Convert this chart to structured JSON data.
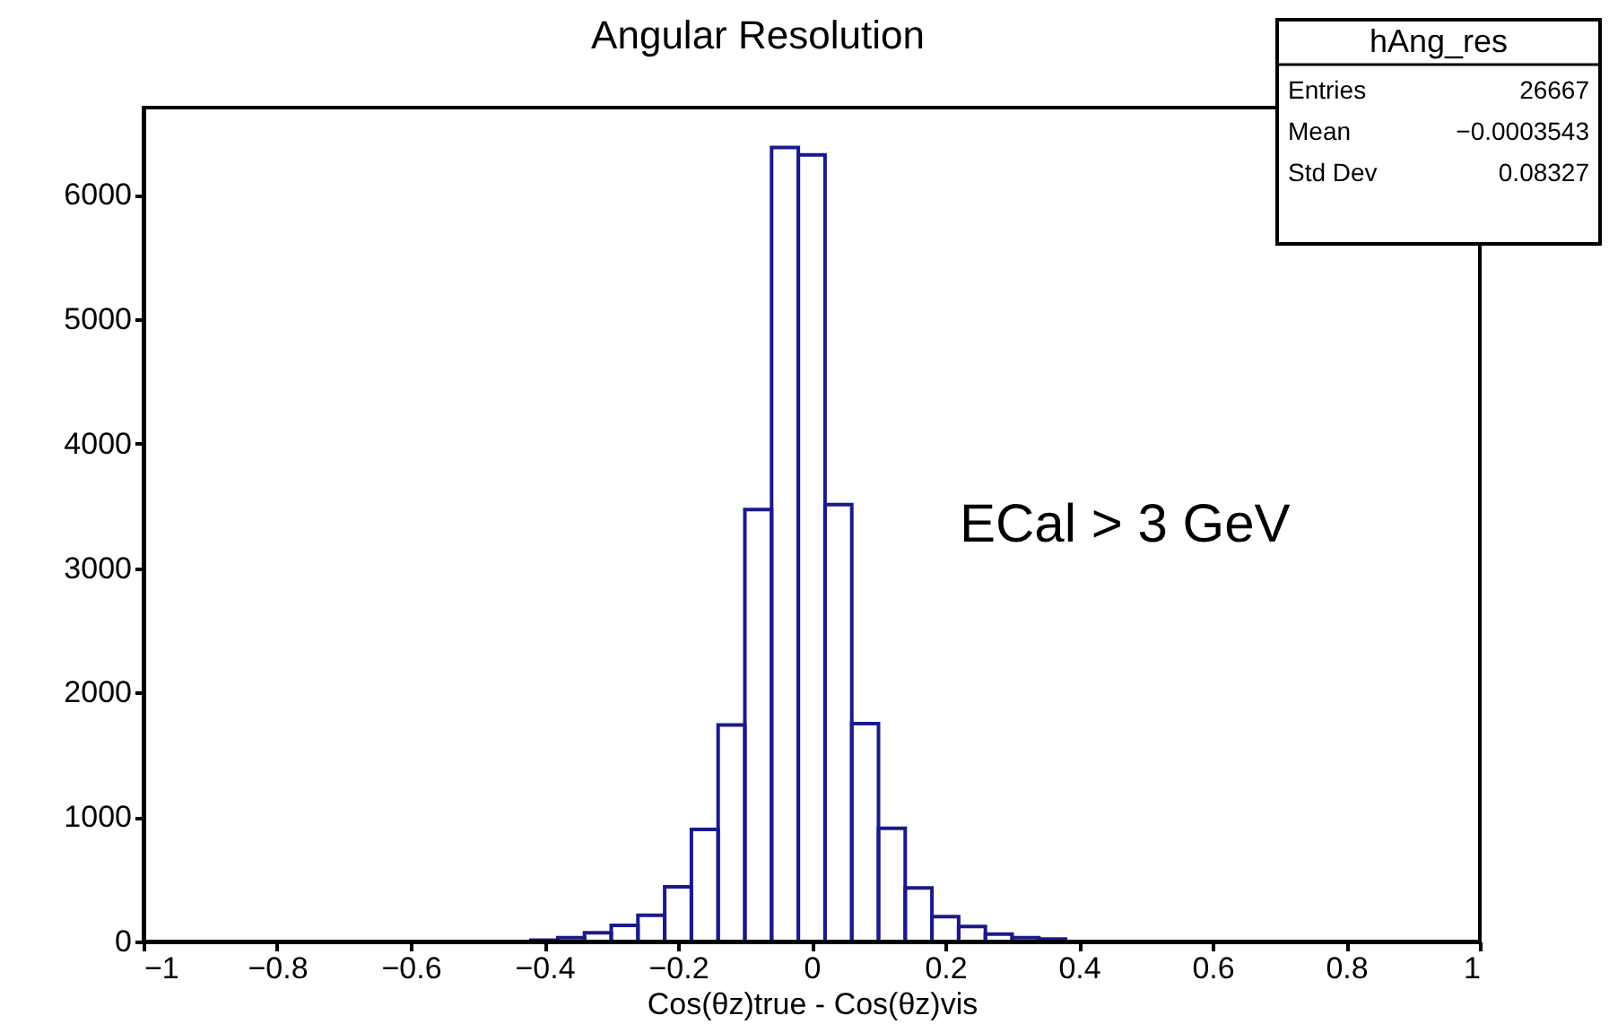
{
  "chart_data": {
    "type": "histogram",
    "title": "Angular Resolution",
    "xlabel": "Cos(θz)true - Cos(θz)vis",
    "bins": [
      -0.42,
      -0.38,
      -0.34,
      -0.3,
      -0.26,
      -0.22,
      -0.18,
      -0.14,
      -0.1,
      -0.06,
      -0.02,
      0.02,
      0.06,
      0.1,
      0.14,
      0.18,
      0.22,
      0.26,
      0.3,
      0.34,
      0.38
    ],
    "values": [
      10,
      30,
      70,
      130,
      210,
      440,
      900,
      1740,
      3470,
      6380,
      6320,
      3510,
      1750,
      910,
      430,
      200,
      120,
      60,
      30,
      20
    ],
    "color": "#1a1a8c",
    "xlim": [
      -1,
      1
    ],
    "xticks": [
      -1,
      -0.8,
      -0.6,
      -0.4,
      -0.2,
      0,
      0.2,
      0.4,
      0.6,
      0.8,
      1
    ],
    "ylim": [
      0,
      6700
    ],
    "yticks": [
      0,
      1000,
      2000,
      3000,
      4000,
      5000,
      6000
    ],
    "grid": false,
    "annotations": [
      "ECal > 3 GeV",
      "hAng_res",
      "Entries",
      "26667",
      "Mean",
      "−0.0003543",
      "Std Dev",
      "0.08327"
    ]
  }
}
